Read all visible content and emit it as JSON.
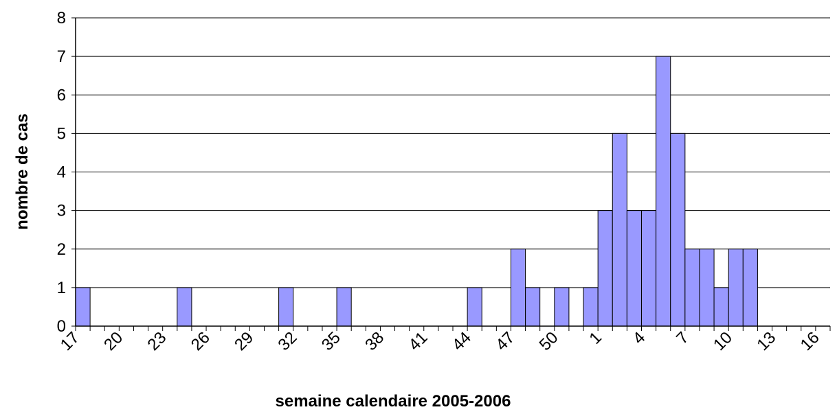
{
  "chart_data": {
    "type": "bar",
    "xlabel": "semaine calendaire 2005-2006",
    "ylabel": "nombre de cas",
    "categories": [
      "17",
      null,
      null,
      "20",
      null,
      null,
      "23",
      null,
      null,
      "26",
      null,
      null,
      "29",
      null,
      null,
      "32",
      null,
      null,
      "35",
      null,
      null,
      "38",
      null,
      null,
      "41",
      null,
      null,
      "44",
      null,
      null,
      "47",
      null,
      null,
      "50",
      null,
      null,
      "1",
      null,
      null,
      "4",
      null,
      null,
      "7",
      null,
      null,
      "10",
      null,
      null,
      "13",
      null,
      null,
      "16"
    ],
    "values": [
      1,
      0,
      0,
      0,
      0,
      0,
      0,
      1,
      0,
      0,
      0,
      0,
      0,
      0,
      1,
      0,
      0,
      0,
      1,
      0,
      0,
      0,
      0,
      0,
      0,
      0,
      0,
      1,
      0,
      0,
      2,
      1,
      0,
      1,
      0,
      1,
      3,
      5,
      3,
      3,
      7,
      5,
      2,
      2,
      1,
      2,
      2,
      0,
      0,
      0,
      0,
      0
    ],
    "color": "#9999ff",
    "ylim": [
      0,
      8
    ],
    "yticks": [
      0,
      1,
      2,
      3,
      4,
      5,
      6,
      7,
      8
    ],
    "grid": true
  }
}
